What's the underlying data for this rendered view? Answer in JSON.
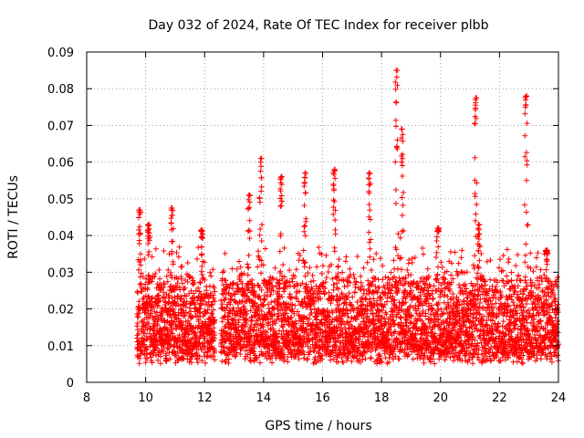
{
  "chart_data": {
    "type": "scatter",
    "title": "Day 032 of 2024, Rate Of TEC Index for receiver plbb",
    "xlabel": "GPS time / hours",
    "ylabel": "ROTI / TECUs",
    "xlim": [
      8,
      24
    ],
    "ylim": [
      0,
      0.09
    ],
    "x_ticks": [
      8,
      10,
      12,
      14,
      16,
      18,
      20,
      22,
      24
    ],
    "y_ticks": [
      0,
      0.01,
      0.02,
      0.03,
      0.04,
      0.05,
      0.06,
      0.07,
      0.08,
      0.09
    ],
    "x_tick_labels": [
      "8",
      "10",
      "12",
      "14",
      "16",
      "18",
      "20",
      "22",
      "24"
    ],
    "y_tick_labels": [
      "0",
      "0.01",
      "0.02",
      "0.03",
      "0.04",
      "0.05",
      "0.06",
      "0.07",
      "0.08",
      "0.09"
    ],
    "grid": true,
    "marker": "+",
    "color": "#ff0000",
    "series": [
      {
        "name": "ROTI",
        "data_start_hour": 9.7,
        "data_end_hour": 24.0,
        "gap_hours": [
          12.35,
          12.55
        ],
        "baseline_range": [
          0.005,
          0.025
        ],
        "peaks": [
          {
            "x": 9.8,
            "y": 0.047
          },
          {
            "x": 10.1,
            "y": 0.043
          },
          {
            "x": 10.9,
            "y": 0.0475
          },
          {
            "x": 11.9,
            "y": 0.0415
          },
          {
            "x": 13.5,
            "y": 0.051
          },
          {
            "x": 13.9,
            "y": 0.061
          },
          {
            "x": 14.6,
            "y": 0.056
          },
          {
            "x": 15.4,
            "y": 0.057
          },
          {
            "x": 16.4,
            "y": 0.058
          },
          {
            "x": 17.6,
            "y": 0.057
          },
          {
            "x": 18.5,
            "y": 0.085
          },
          {
            "x": 18.7,
            "y": 0.069
          },
          {
            "x": 19.9,
            "y": 0.042
          },
          {
            "x": 21.2,
            "y": 0.0775
          },
          {
            "x": 21.3,
            "y": 0.043
          },
          {
            "x": 22.9,
            "y": 0.078
          },
          {
            "x": 23.6,
            "y": 0.036
          }
        ]
      }
    ]
  }
}
